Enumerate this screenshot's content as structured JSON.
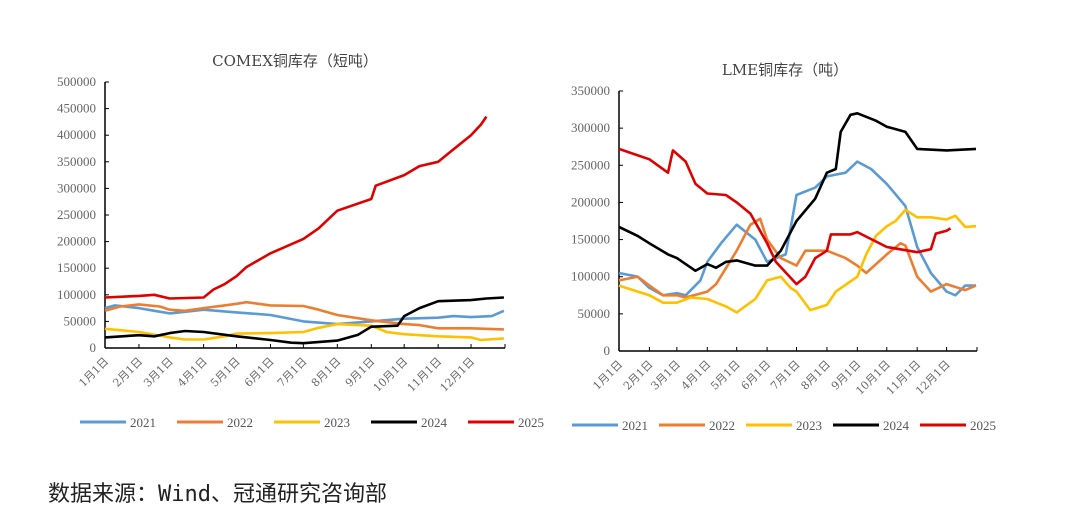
{
  "source": "数据来源：Wind、冠通研究咨询部",
  "colors": {
    "2021": "#5b9bd5",
    "2022": "#ed7d31",
    "2023": "#ffc000",
    "2024": "#000000",
    "2025": "#e00000"
  },
  "chart_data": [
    {
      "type": "line",
      "title": "COMEX铜库存（短吨）",
      "ylim": [
        0,
        500000
      ],
      "yticks": [
        "0",
        "50000",
        "100000",
        "150000",
        "200000",
        "250000",
        "300000",
        "350000",
        "400000",
        "450000",
        "500000"
      ],
      "xticks": [
        "1月1日",
        "2月1日",
        "3月1日",
        "4月1日",
        "5月1日",
        "6月1日",
        "7月1日",
        "8月1日",
        "9月1日",
        "10月1日",
        "11月1日",
        "12月1日"
      ],
      "legend": "bottom",
      "series": [
        {
          "name": "2021",
          "points": [
            [
              "01-01",
              75000
            ],
            [
              "01-10",
              80000
            ],
            [
              "02-01",
              75000
            ],
            [
              "02-15",
              70000
            ],
            [
              "03-01",
              65000
            ],
            [
              "03-15",
              68000
            ],
            [
              "04-01",
              72000
            ],
            [
              "05-01",
              67000
            ],
            [
              "06-01",
              62000
            ],
            [
              "07-01",
              50000
            ],
            [
              "08-01",
              45000
            ],
            [
              "09-01",
              50000
            ],
            [
              "10-01",
              55000
            ],
            [
              "11-01",
              57000
            ],
            [
              "11-15",
              60000
            ],
            [
              "12-01",
              58000
            ],
            [
              "12-20",
              60000
            ],
            [
              "12-31",
              70000
            ]
          ]
        },
        {
          "name": "2022",
          "points": [
            [
              "01-01",
              70000
            ],
            [
              "01-15",
              78000
            ],
            [
              "02-01",
              82000
            ],
            [
              "02-20",
              78000
            ],
            [
              "03-01",
              72000
            ],
            [
              "03-15",
              70000
            ],
            [
              "04-01",
              75000
            ],
            [
              "04-20",
              80000
            ],
            [
              "05-01",
              83000
            ],
            [
              "05-10",
              86000
            ],
            [
              "06-01",
              80000
            ],
            [
              "07-01",
              79000
            ],
            [
              "07-15",
              72000
            ],
            [
              "08-01",
              62000
            ],
            [
              "09-01",
              52000
            ],
            [
              "10-01",
              45000
            ],
            [
              "10-15",
              43000
            ],
            [
              "11-01",
              37000
            ],
            [
              "12-01",
              37000
            ],
            [
              "12-31",
              35000
            ]
          ]
        },
        {
          "name": "2023",
          "points": [
            [
              "01-01",
              36000
            ],
            [
              "02-01",
              30000
            ],
            [
              "03-01",
              20000
            ],
            [
              "03-15",
              16000
            ],
            [
              "04-01",
              16000
            ],
            [
              "04-20",
              22000
            ],
            [
              "05-01",
              27000
            ],
            [
              "06-01",
              28000
            ],
            [
              "07-01",
              30000
            ],
            [
              "07-15",
              38000
            ],
            [
              "08-01",
              45000
            ],
            [
              "09-01",
              42000
            ],
            [
              "09-15",
              30000
            ],
            [
              "10-01",
              26000
            ],
            [
              "11-01",
              22000
            ],
            [
              "12-01",
              20000
            ],
            [
              "12-10",
              15000
            ],
            [
              "12-31",
              18000
            ]
          ]
        },
        {
          "name": "2024",
          "points": [
            [
              "01-01",
              20000
            ],
            [
              "02-01",
              24000
            ],
            [
              "02-15",
              22000
            ],
            [
              "03-01",
              28000
            ],
            [
              "03-15",
              32000
            ],
            [
              "04-01",
              30000
            ],
            [
              "05-01",
              22000
            ],
            [
              "06-01",
              15000
            ],
            [
              "06-20",
              10000
            ],
            [
              "07-01",
              9000
            ],
            [
              "08-01",
              14000
            ],
            [
              "08-20",
              25000
            ],
            [
              "09-01",
              40000
            ],
            [
              "09-25",
              42000
            ],
            [
              "10-01",
              60000
            ],
            [
              "10-15",
              75000
            ],
            [
              "11-01",
              88000
            ],
            [
              "12-01",
              90000
            ],
            [
              "12-15",
              93000
            ],
            [
              "12-31",
              95000
            ]
          ]
        },
        {
          "name": "2025",
          "points": [
            [
              "01-01",
              95000
            ],
            [
              "02-01",
              98000
            ],
            [
              "02-15",
              100000
            ],
            [
              "03-01",
              93000
            ],
            [
              "04-01",
              95000
            ],
            [
              "04-10",
              110000
            ],
            [
              "04-20",
              120000
            ],
            [
              "05-01",
              135000
            ],
            [
              "05-10",
              152000
            ],
            [
              "06-01",
              178000
            ],
            [
              "07-01",
              205000
            ],
            [
              "07-15",
              225000
            ],
            [
              "08-01",
              258000
            ],
            [
              "09-01",
              280000
            ],
            [
              "09-05",
              305000
            ],
            [
              "10-01",
              325000
            ],
            [
              "10-15",
              342000
            ],
            [
              "11-01",
              350000
            ],
            [
              "11-10",
              365000
            ],
            [
              "12-01",
              400000
            ],
            [
              "12-10",
              420000
            ],
            [
              "12-15",
              435000
            ]
          ]
        }
      ]
    },
    {
      "type": "line",
      "title": "LME铜库存（吨）",
      "ylim": [
        0,
        350000
      ],
      "yticks": [
        "0",
        "50000",
        "100000",
        "150000",
        "200000",
        "250000",
        "300000",
        "350000"
      ],
      "xticks": [
        "1月1日",
        "2月1日",
        "3月1日",
        "4月1日",
        "5月1日",
        "6月1日",
        "7月1日",
        "8月1日",
        "9月1日",
        "10月1日",
        "11月1日",
        "12月1日"
      ],
      "legend": "bottom",
      "series": [
        {
          "name": "2021",
          "points": [
            [
              "01-01",
              105000
            ],
            [
              "01-20",
              100000
            ],
            [
              "02-01",
              85000
            ],
            [
              "02-15",
              75000
            ],
            [
              "03-01",
              78000
            ],
            [
              "03-10",
              75000
            ],
            [
              "03-25",
              95000
            ],
            [
              "04-01",
              120000
            ],
            [
              "04-15",
              145000
            ],
            [
              "05-01",
              170000
            ],
            [
              "05-20",
              150000
            ],
            [
              "06-01",
              120000
            ],
            [
              "06-10",
              125000
            ],
            [
              "06-20",
              130000
            ],
            [
              "06-25",
              165000
            ],
            [
              "07-01",
              210000
            ],
            [
              "07-20",
              220000
            ],
            [
              "08-01",
              235000
            ],
            [
              "08-20",
              240000
            ],
            [
              "09-01",
              255000
            ],
            [
              "09-15",
              245000
            ],
            [
              "10-01",
              225000
            ],
            [
              "10-20",
              195000
            ],
            [
              "11-01",
              140000
            ],
            [
              "11-15",
              105000
            ],
            [
              "12-01",
              80000
            ],
            [
              "12-10",
              75000
            ],
            [
              "12-20",
              88000
            ],
            [
              "12-31",
              88000
            ]
          ]
        },
        {
          "name": "2022",
          "points": [
            [
              "01-01",
              95000
            ],
            [
              "01-20",
              100000
            ],
            [
              "02-01",
              88000
            ],
            [
              "02-15",
              75000
            ],
            [
              "03-01",
              75000
            ],
            [
              "03-10",
              72000
            ],
            [
              "04-01",
              80000
            ],
            [
              "04-10",
              90000
            ],
            [
              "05-01",
              135000
            ],
            [
              "05-15",
              170000
            ],
            [
              "05-25",
              178000
            ],
            [
              "06-01",
              150000
            ],
            [
              "06-15",
              125000
            ],
            [
              "07-01",
              115000
            ],
            [
              "07-10",
              135000
            ],
            [
              "08-01",
              135000
            ],
            [
              "08-20",
              125000
            ],
            [
              "09-01",
              115000
            ],
            [
              "09-10",
              105000
            ],
            [
              "10-01",
              130000
            ],
            [
              "10-15",
              145000
            ],
            [
              "10-20",
              142000
            ],
            [
              "11-01",
              100000
            ],
            [
              "11-15",
              80000
            ],
            [
              "12-01",
              90000
            ],
            [
              "12-20",
              82000
            ],
            [
              "12-31",
              88000
            ]
          ]
        },
        {
          "name": "2023",
          "points": [
            [
              "01-01",
              88000
            ],
            [
              "02-01",
              75000
            ],
            [
              "02-15",
              65000
            ],
            [
              "03-01",
              65000
            ],
            [
              "03-15",
              72000
            ],
            [
              "04-01",
              70000
            ],
            [
              "04-20",
              60000
            ],
            [
              "05-01",
              52000
            ],
            [
              "05-20",
              70000
            ],
            [
              "06-01",
              95000
            ],
            [
              "06-15",
              100000
            ],
            [
              "06-25",
              85000
            ],
            [
              "07-01",
              80000
            ],
            [
              "07-15",
              55000
            ],
            [
              "08-01",
              62000
            ],
            [
              "08-10",
              80000
            ],
            [
              "09-01",
              100000
            ],
            [
              "09-10",
              130000
            ],
            [
              "09-20",
              155000
            ],
            [
              "10-01",
              168000
            ],
            [
              "10-10",
              175000
            ],
            [
              "10-20",
              190000
            ],
            [
              "11-01",
              180000
            ],
            [
              "11-15",
              180000
            ],
            [
              "12-01",
              177000
            ],
            [
              "12-10",
              182000
            ],
            [
              "12-20",
              167000
            ],
            [
              "12-31",
              168000
            ]
          ]
        },
        {
          "name": "2024",
          "points": [
            [
              "01-01",
              167000
            ],
            [
              "01-20",
              155000
            ],
            [
              "02-01",
              145000
            ],
            [
              "02-20",
              130000
            ],
            [
              "03-01",
              125000
            ],
            [
              "03-20",
              108000
            ],
            [
              "04-01",
              117000
            ],
            [
              "04-10",
              112000
            ],
            [
              "04-20",
              120000
            ],
            [
              "05-01",
              122000
            ],
            [
              "05-20",
              115000
            ],
            [
              "06-01",
              115000
            ],
            [
              "06-15",
              135000
            ],
            [
              "07-01",
              175000
            ],
            [
              "07-20",
              205000
            ],
            [
              "08-01",
              240000
            ],
            [
              "08-10",
              245000
            ],
            [
              "08-15",
              295000
            ],
            [
              "08-25",
              318000
            ],
            [
              "09-01",
              320000
            ],
            [
              "09-20",
              310000
            ],
            [
              "10-01",
              302000
            ],
            [
              "10-20",
              295000
            ],
            [
              "11-01",
              272000
            ],
            [
              "12-01",
              270000
            ],
            [
              "12-31",
              272000
            ]
          ]
        },
        {
          "name": "2025",
          "points": [
            [
              "01-01",
              272000
            ],
            [
              "02-01",
              258000
            ],
            [
              "02-20",
              240000
            ],
            [
              "02-25",
              270000
            ],
            [
              "03-10",
              255000
            ],
            [
              "03-20",
              225000
            ],
            [
              "04-01",
              212000
            ],
            [
              "04-20",
              210000
            ],
            [
              "05-01",
              200000
            ],
            [
              "05-15",
              185000
            ],
            [
              "06-01",
              145000
            ],
            [
              "06-10",
              120000
            ],
            [
              "07-01",
              90000
            ],
            [
              "07-10",
              100000
            ],
            [
              "07-20",
              125000
            ],
            [
              "08-01",
              135000
            ],
            [
              "08-05",
              157000
            ],
            [
              "08-25",
              157000
            ],
            [
              "09-01",
              160000
            ],
            [
              "10-01",
              140000
            ],
            [
              "11-01",
              133000
            ],
            [
              "11-15",
              137000
            ],
            [
              "11-20",
              158000
            ],
            [
              "12-01",
              162000
            ],
            [
              "12-05",
              165000
            ]
          ]
        }
      ]
    }
  ]
}
